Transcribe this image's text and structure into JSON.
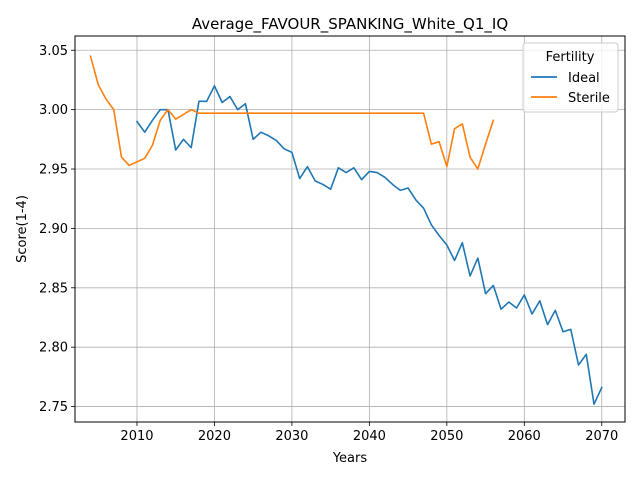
{
  "chart_data": {
    "type": "line",
    "title": "Average_FAVOUR_SPANKING_White_Q1_IQ",
    "xlabel": "Years",
    "ylabel": "Score(1-4)",
    "xlim": [
      2002,
      2073
    ],
    "ylim": [
      2.737,
      3.062
    ],
    "xticks": [
      2010,
      2020,
      2030,
      2040,
      2050,
      2060,
      2070
    ],
    "xtick_labels": [
      "2010",
      "2020",
      "2030",
      "2040",
      "2050",
      "2060",
      "2070"
    ],
    "yticks": [
      2.75,
      2.8,
      2.85,
      2.9,
      2.95,
      3.0,
      3.05
    ],
    "ytick_labels": [
      "2.75",
      "2.80",
      "2.85",
      "2.90",
      "2.95",
      "3.00",
      "3.05"
    ],
    "grid": true,
    "legend": {
      "title": "Fertility",
      "placement": "top-right"
    },
    "series": [
      {
        "name": "Ideal",
        "color": "#1f77b4",
        "x": [
          2010,
          2011,
          2012,
          2013,
          2014,
          2015,
          2016,
          2017,
          2018,
          2019,
          2020,
          2021,
          2022,
          2023,
          2024,
          2025,
          2026,
          2027,
          2028,
          2029,
          2030,
          2031,
          2032,
          2033,
          2034,
          2035,
          2036,
          2037,
          2038,
          2039,
          2040,
          2041,
          2042,
          2043,
          2044,
          2045,
          2046,
          2047,
          2048,
          2049,
          2050,
          2051,
          2052,
          2053,
          2054,
          2055,
          2056,
          2057,
          2058,
          2059,
          2060,
          2061,
          2062,
          2063,
          2064,
          2065,
          2066,
          2067,
          2068,
          2069,
          2070
        ],
        "values": [
          2.99,
          2.981,
          2.991,
          3.0,
          3.0,
          2.966,
          2.975,
          2.968,
          3.007,
          3.007,
          3.02,
          3.006,
          3.011,
          3.0,
          3.005,
          2.975,
          2.981,
          2.978,
          2.974,
          2.967,
          2.964,
          2.942,
          2.952,
          2.94,
          2.937,
          2.933,
          2.951,
          2.947,
          2.951,
          2.941,
          2.948,
          2.947,
          2.943,
          2.937,
          2.932,
          2.934,
          2.924,
          2.917,
          2.903,
          2.894,
          2.886,
          2.873,
          2.888,
          2.86,
          2.875,
          2.845,
          2.852,
          2.832,
          2.838,
          2.833,
          2.844,
          2.828,
          2.839,
          2.819,
          2.831,
          2.813,
          2.815,
          2.785,
          2.794,
          2.752,
          2.766
        ]
      },
      {
        "name": "Sterile",
        "color": "#ff7f0e",
        "x": [
          2004,
          2005,
          2006,
          2007,
          2008,
          2009,
          2010,
          2011,
          2012,
          2013,
          2014,
          2015,
          2016,
          2017,
          2018,
          2019,
          2020,
          2025,
          2030,
          2035,
          2040,
          2045,
          2047,
          2048,
          2049,
          2050,
          2051,
          2052,
          2053,
          2054,
          2055,
          2056
        ],
        "values": [
          3.045,
          3.021,
          3.009,
          3.0,
          2.96,
          2.953,
          2.956,
          2.959,
          2.97,
          2.991,
          3.0,
          2.992,
          2.996,
          3.0,
          2.997,
          2.997,
          2.997,
          2.997,
          2.997,
          2.997,
          2.997,
          2.997,
          2.997,
          2.971,
          2.973,
          2.952,
          2.984,
          2.988,
          2.96,
          2.95,
          2.971,
          2.991
        ]
      }
    ]
  }
}
